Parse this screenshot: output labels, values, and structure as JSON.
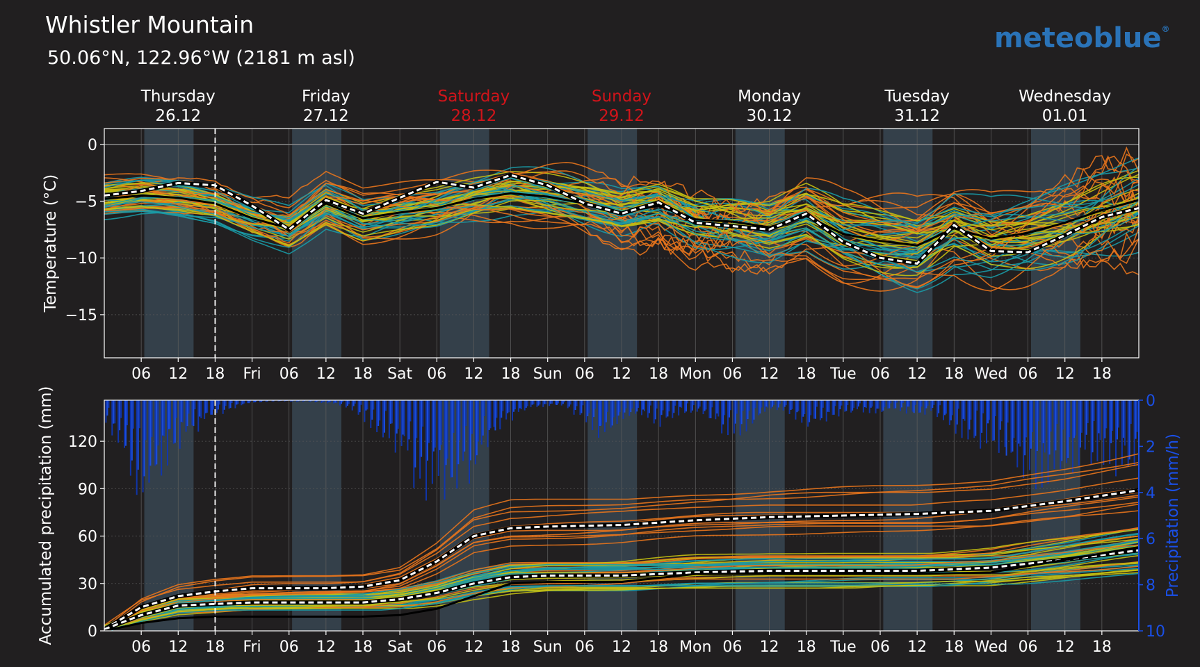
{
  "header": {
    "title": "Whistler Mountain",
    "subtitle": "50.06°N, 122.96°W (2181 m asl)",
    "logo_text": "meteoblue",
    "logo_mark": "®"
  },
  "colors": {
    "background": "#211f20",
    "night_band": "#34404a",
    "accent_logo": "#2a73b8",
    "weekend_red": "#d1141a",
    "precip_blue": "#1a4fe6",
    "median_black": "#000000",
    "mean_white": "#ffffff",
    "members": [
      "#e8741c",
      "#c4bf12",
      "#1a9aa6"
    ]
  },
  "days": [
    {
      "name": "Thursday",
      "date": "26.12",
      "weekend": false
    },
    {
      "name": "Friday",
      "date": "27.12",
      "weekend": false
    },
    {
      "name": "Saturday",
      "date": "28.12",
      "weekend": true
    },
    {
      "name": "Sunday",
      "date": "29.12",
      "weekend": true
    },
    {
      "name": "Monday",
      "date": "30.12",
      "weekend": false
    },
    {
      "name": "Tuesday",
      "date": "31.12",
      "weekend": false
    },
    {
      "name": "Wednesday",
      "date": "01.01",
      "weekend": false
    }
  ],
  "x_tick_labels": [
    "06",
    "12",
    "18",
    "Fri",
    "06",
    "12",
    "18",
    "Sat",
    "06",
    "12",
    "18",
    "Sun",
    "06",
    "12",
    "18",
    "Mon",
    "06",
    "12",
    "18",
    "Tue",
    "06",
    "12",
    "18",
    "Wed",
    "06",
    "12",
    "18"
  ],
  "chart_data": [
    {
      "type": "line",
      "ylabel": "Temperature (°C)",
      "ylim": [
        -18.8,
        1.4
      ],
      "yticks": [
        0,
        -5,
        -10,
        -15
      ],
      "ytick_labels": [
        "0",
        "−5",
        "−10",
        "−15"
      ],
      "x_unit": "hours since 26.12 00:00",
      "xlim": [
        0,
        168
      ],
      "now_hour": 18,
      "grid": true,
      "series": [
        {
          "role": "median",
          "x": [
            0,
            6,
            12,
            18,
            24,
            30,
            36,
            42,
            48,
            54,
            60,
            66,
            72,
            78,
            84,
            90,
            96,
            102,
            108,
            114,
            120,
            126,
            132,
            138,
            144,
            150,
            156,
            162,
            168
          ],
          "values": [
            -4.8,
            -4.5,
            -4.7,
            -5.2,
            -6.5,
            -7.4,
            -5.2,
            -6.5,
            -6.0,
            -5.6,
            -4.8,
            -4.3,
            -4.6,
            -5.2,
            -6.0,
            -5.4,
            -6.6,
            -6.8,
            -7.3,
            -6.3,
            -7.9,
            -8.5,
            -8.9,
            -7.4,
            -8.3,
            -7.8,
            -6.9,
            -5.8,
            -4.9
          ]
        },
        {
          "role": "mean",
          "x": [
            0,
            6,
            12,
            18,
            24,
            30,
            36,
            42,
            48,
            54,
            60,
            66,
            72,
            78,
            84,
            90,
            96,
            102,
            108,
            114,
            120,
            126,
            132,
            138,
            144,
            150,
            156,
            162,
            168
          ],
          "values": [
            -4.5,
            -4.1,
            -3.4,
            -3.6,
            -5.4,
            -7.5,
            -4.9,
            -6.1,
            -4.7,
            -3.3,
            -3.8,
            -2.7,
            -3.6,
            -5.2,
            -6.1,
            -5.1,
            -6.9,
            -7.2,
            -7.5,
            -6.1,
            -8.6,
            -10.0,
            -10.5,
            -7.1,
            -9.4,
            -9.5,
            -8.0,
            -6.4,
            -5.6
          ]
        }
      ],
      "ensemble_members": 60
    },
    {
      "type": "line",
      "ylabel": "Accumulated precipitation (mm)",
      "ylim": [
        0,
        146
      ],
      "yticks": [
        0,
        30,
        60,
        90,
        120
      ],
      "ytick_labels": [
        "0",
        "30",
        "60",
        "90",
        "120"
      ],
      "y2label": "Precipitation (mm/h)",
      "y2lim": [
        0,
        10
      ],
      "y2ticks": [
        0,
        2,
        4,
        6,
        8,
        10
      ],
      "y2tick_labels": [
        "0",
        "2",
        "4",
        "6",
        "8",
        "10"
      ],
      "y2_inverted": true,
      "x_unit": "hours since 26.12 00:00",
      "xlim": [
        0,
        168
      ],
      "now_hour": 18,
      "grid": true,
      "series": [
        {
          "role": "mean-high",
          "x": [
            0,
            6,
            12,
            18,
            24,
            36,
            42,
            48,
            54,
            60,
            66,
            72,
            84,
            96,
            108,
            120,
            132,
            144,
            156,
            168
          ],
          "values": [
            1,
            15,
            22,
            25,
            27,
            27,
            28,
            32,
            44,
            60,
            65,
            66,
            67,
            70,
            72,
            73,
            74,
            76,
            82,
            89
          ]
        },
        {
          "role": "mean-low",
          "x": [
            0,
            6,
            12,
            18,
            24,
            36,
            42,
            48,
            54,
            60,
            66,
            72,
            84,
            96,
            108,
            120,
            132,
            144,
            156,
            168
          ],
          "values": [
            1,
            10,
            16,
            17,
            18,
            18,
            18,
            20,
            24,
            30,
            34,
            35,
            35,
            37,
            38,
            38,
            38,
            40,
            45,
            51
          ]
        },
        {
          "role": "median",
          "x": [
            0,
            6,
            12,
            18,
            24,
            36,
            42,
            48,
            54,
            60,
            66,
            72,
            84,
            96,
            108,
            120,
            132,
            144,
            156,
            168
          ],
          "values": [
            0,
            5,
            8,
            9,
            9,
            9,
            9,
            10,
            14,
            22,
            30,
            31,
            31,
            36,
            36,
            36,
            36,
            37,
            45,
            53
          ]
        }
      ],
      "precip_rate": {
        "x": [
          0,
          3,
          6,
          9,
          12,
          15,
          18,
          21,
          24,
          27,
          30,
          33,
          36,
          39,
          42,
          45,
          48,
          51,
          54,
          57,
          60,
          63,
          66,
          69,
          72,
          75,
          78,
          81,
          84,
          87,
          90,
          93,
          96,
          99,
          102,
          105,
          108,
          111,
          114,
          117,
          120,
          123,
          126,
          129,
          132,
          135,
          138,
          141,
          144,
          147,
          150,
          153,
          156,
          159,
          162,
          165,
          168
        ],
        "values": [
          0.8,
          1.8,
          3.2,
          2.5,
          1.6,
          1.1,
          0.6,
          0.3,
          0.1,
          0.05,
          0.05,
          0.05,
          0.1,
          0.2,
          0.6,
          1.2,
          1.9,
          2.9,
          3.6,
          3.3,
          2.5,
          1.4,
          0.7,
          0.3,
          0.2,
          0.2,
          0.8,
          1.6,
          0.7,
          0.6,
          0.9,
          0.5,
          0.4,
          0.8,
          1.3,
          0.9,
          0.3,
          0.4,
          0.9,
          0.7,
          0.5,
          0.4,
          0.5,
          0.3,
          0.6,
          0.4,
          1.2,
          1.4,
          1.6,
          2.3,
          2.9,
          3.0,
          3.1,
          2.3,
          2.4,
          2.6,
          2.2
        ]
      }
    }
  ]
}
